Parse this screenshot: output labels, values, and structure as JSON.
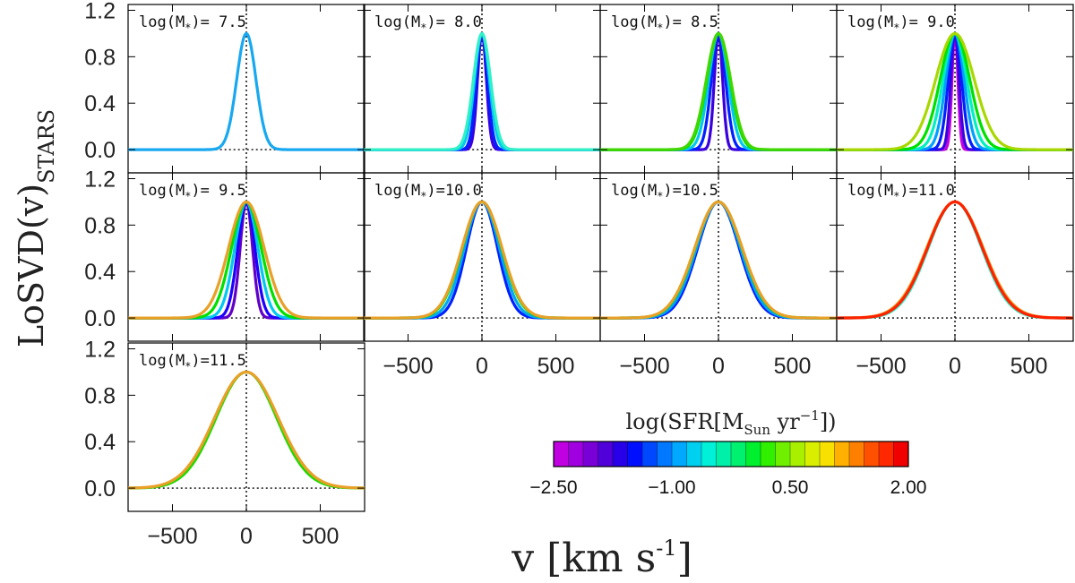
{
  "chart_data": {
    "type": "line",
    "title": "",
    "xlabel": "v [km s^-1]",
    "ylabel": "LoSVD(v)",
    "ylabel_subscript": "STARS",
    "xlim": [
      -800,
      800
    ],
    "ylim": [
      -0.2,
      1.25
    ],
    "x_ticks": [
      -500,
      0,
      500
    ],
    "x_tick_labels": [
      "−500",
      "0",
      "500"
    ],
    "y_ticks": [
      0.0,
      0.4,
      0.8,
      1.2
    ],
    "y_tick_labels": [
      "0.0",
      "0.4",
      "0.8",
      "1.2"
    ],
    "grid": false,
    "line_shape": "gaussian",
    "panel_label_prefix": "log(M",
    "panel_label_subscript": "*",
    "panel_label_suffix": ")=",
    "panels": [
      {
        "label_value": " 7.5",
        "series": [
          {
            "log_sfr": -0.9,
            "color": "#18a8f0",
            "sigma": 65
          }
        ]
      },
      {
        "label_value": " 8.0",
        "series": [
          {
            "log_sfr": -1.4,
            "color": "#3a00e0",
            "sigma": 30
          },
          {
            "log_sfr": -1.0,
            "color": "#0020ff",
            "sigma": 38
          },
          {
            "log_sfr": -0.5,
            "color": "#00c8f0",
            "sigma": 50
          },
          {
            "log_sfr": -0.2,
            "color": "#30f0c8",
            "sigma": 58
          }
        ]
      },
      {
        "label_value": " 8.5",
        "series": [
          {
            "log_sfr": -1.3,
            "color": "#3a00e0",
            "sigma": 28
          },
          {
            "log_sfr": -1.0,
            "color": "#0020ff",
            "sigma": 48
          },
          {
            "log_sfr": -0.5,
            "color": "#00c8f0",
            "sigma": 65
          },
          {
            "log_sfr": 0.2,
            "color": "#00e000",
            "sigma": 78
          },
          {
            "log_sfr": 0.6,
            "color": "#40d800",
            "sigma": 82
          }
        ]
      },
      {
        "label_value": " 9.0",
        "series": [
          {
            "log_sfr": -2.0,
            "color": "#c800e0",
            "sigma": 20
          },
          {
            "log_sfr": -1.2,
            "color": "#3a00e0",
            "sigma": 28
          },
          {
            "log_sfr": -0.9,
            "color": "#0020ff",
            "sigma": 45
          },
          {
            "log_sfr": -0.5,
            "color": "#00a0ff",
            "sigma": 62
          },
          {
            "log_sfr": -0.1,
            "color": "#00f0c0",
            "sigma": 80
          },
          {
            "log_sfr": 0.4,
            "color": "#00e000",
            "sigma": 100
          },
          {
            "log_sfr": 0.9,
            "color": "#a8d800",
            "sigma": 130
          }
        ]
      },
      {
        "label_value": " 9.5",
        "series": [
          {
            "log_sfr": -1.6,
            "color": "#6000c8",
            "sigma": 42
          },
          {
            "log_sfr": -1.1,
            "color": "#1e00ff",
            "sigma": 58
          },
          {
            "log_sfr": -0.6,
            "color": "#00c8f0",
            "sigma": 78
          },
          {
            "log_sfr": 0.3,
            "color": "#00e000",
            "sigma": 100
          },
          {
            "log_sfr": 1.2,
            "color": "#e8a028",
            "sigma": 120
          }
        ]
      },
      {
        "label_value": "10.0",
        "series": [
          {
            "log_sfr": -1.0,
            "color": "#0020ff",
            "sigma": 105
          },
          {
            "log_sfr": -0.6,
            "color": "#00a8f0",
            "sigma": 118
          },
          {
            "log_sfr": 0.3,
            "color": "#00e000",
            "sigma": 132
          },
          {
            "log_sfr": 1.2,
            "color": "#e8a028",
            "sigma": 135
          }
        ]
      },
      {
        "label_value": "10.5",
        "series": [
          {
            "log_sfr": -1.0,
            "color": "#0020ff",
            "sigma": 140
          },
          {
            "log_sfr": -0.6,
            "color": "#00a8f0",
            "sigma": 148
          },
          {
            "log_sfr": 0.3,
            "color": "#00e000",
            "sigma": 158
          },
          {
            "log_sfr": 1.2,
            "color": "#e8a028",
            "sigma": 160
          }
        ]
      },
      {
        "label_value": "11.0",
        "series": [
          {
            "log_sfr": -0.2,
            "color": "#30f0c8",
            "sigma": 180
          },
          {
            "log_sfr": 1.2,
            "color": "#e8a028",
            "sigma": 190
          },
          {
            "log_sfr": 1.9,
            "color": "#ff2000",
            "sigma": 185
          }
        ]
      },
      {
        "label_value": "11.5",
        "series": [
          {
            "log_sfr": 0.4,
            "color": "#20d800",
            "sigma": 205
          },
          {
            "log_sfr": 1.2,
            "color": "#e8a028",
            "sigma": 215
          }
        ]
      }
    ],
    "colorbar": {
      "title_prefix": "log(SFR[M",
      "title_subscript": "Sun",
      "title_middle": " yr",
      "title_superscript": "−1",
      "title_suffix": "])",
      "range": [
        -2.5,
        2.0
      ],
      "ticks": [
        -2.5,
        -1.0,
        0.5,
        2.0
      ],
      "tick_labels": [
        "−2.50",
        "−1.00",
        "0.50",
        "2.00"
      ],
      "colors": [
        "#c000e0",
        "#a000e0",
        "#7a00d8",
        "#5000d8",
        "#2800e8",
        "#0010ff",
        "#0048ff",
        "#0078ff",
        "#00a8ff",
        "#00d0f0",
        "#00f0d8",
        "#00f0a8",
        "#00f070",
        "#00f030",
        "#30f000",
        "#70f000",
        "#a8f000",
        "#d8f000",
        "#f8e000",
        "#ffb000",
        "#ff8000",
        "#ff5000",
        "#ff2800",
        "#f00000"
      ]
    }
  }
}
